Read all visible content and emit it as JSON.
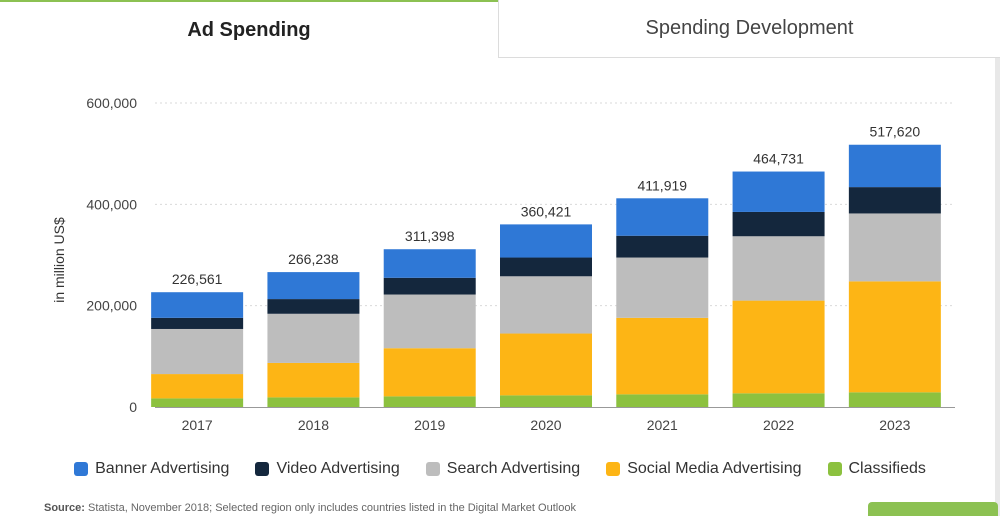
{
  "tabs": {
    "active_label": "Ad Spending",
    "inactive_label": "Spending Development"
  },
  "source": {
    "label": "Source:",
    "text": " Statista, November 2018; Selected region only includes countries listed in the Digital Market Outlook"
  },
  "colors": {
    "banner": "#2f78d6",
    "video": "#14273d",
    "search": "#bdbdbd",
    "social": "#fdb515",
    "classifieds": "#8cc13f",
    "accent": "#8cc152"
  },
  "chart_data": {
    "type": "bar",
    "stacked": true,
    "title": "Ad Spending",
    "xlabel": "",
    "ylabel": "in million US$",
    "ylim": [
      0,
      600000
    ],
    "yticks": [
      0,
      200000,
      400000,
      600000
    ],
    "ytick_labels": [
      "0",
      "200,000",
      "400,000",
      "600,000"
    ],
    "grid": true,
    "legend_position": "bottom",
    "categories": [
      "2017",
      "2018",
      "2019",
      "2020",
      "2021",
      "2022",
      "2023"
    ],
    "totals": [
      226561,
      266238,
      311398,
      360421,
      411919,
      464731,
      517620
    ],
    "total_labels": [
      "226,561",
      "266,238",
      "311,398",
      "360,421",
      "411,919",
      "464,731",
      "517,620"
    ],
    "series": [
      {
        "name": "Classifieds",
        "key": "classifieds",
        "values": [
          17000,
          19000,
          21000,
          23000,
          25000,
          27000,
          29000
        ]
      },
      {
        "name": "Social Media Advertising",
        "key": "social",
        "values": [
          48000,
          68000,
          95000,
          122000,
          151000,
          183000,
          219000
        ]
      },
      {
        "name": "Search Advertising",
        "key": "search",
        "values": [
          89000,
          97000,
          106000,
          113000,
          119000,
          127000,
          134000
        ]
      },
      {
        "name": "Video Advertising",
        "key": "video",
        "values": [
          22000,
          29000,
          33000,
          37000,
          43000,
          48000,
          52000
        ]
      },
      {
        "name": "Banner Advertising",
        "key": "banner",
        "values": [
          50561,
          53238,
          56398,
          65421,
          73919,
          79731,
          83620
        ]
      }
    ],
    "legend_order": [
      "Banner Advertising",
      "Video Advertising",
      "Search Advertising",
      "Social Media Advertising",
      "Classifieds"
    ]
  }
}
